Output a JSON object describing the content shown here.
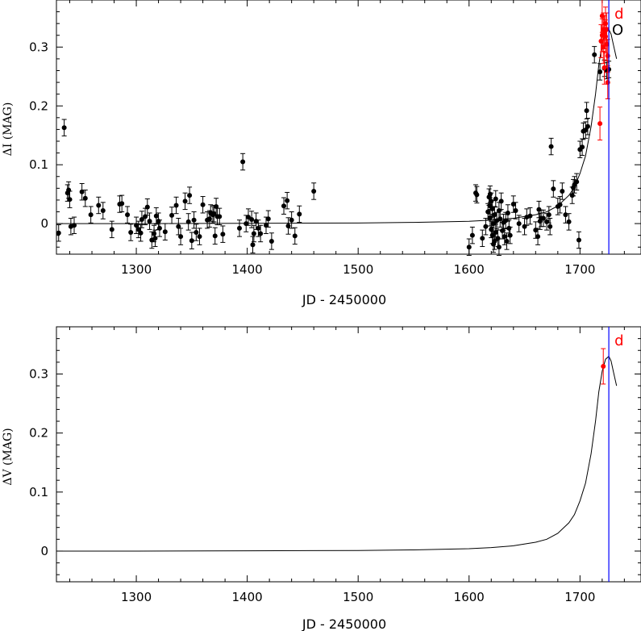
{
  "chart_data": [
    {
      "type": "scatter",
      "panel": "top",
      "xlabel": "JD - 2450000",
      "ylabel": "ΔI (MAG)",
      "xlim": [
        1228,
        1755
      ],
      "ylim": [
        -0.052,
        0.38
      ],
      "xticks": [
        "1300",
        "1400",
        "1500",
        "1600",
        "1700"
      ],
      "yticks": [
        "0",
        "0.1",
        "0.2",
        "0.3"
      ],
      "colors": {
        "black": "#000000",
        "red": "#ff0000",
        "blue": "#0000ff"
      },
      "vline": {
        "x": 1726,
        "color": "#0000ff",
        "label": "d"
      },
      "annotation": "O",
      "series": [
        {
          "color": "black",
          "points": [
            [
              1230,
              -0.016,
              0.014
            ],
            [
              1235,
              0.163,
              0.014
            ],
            [
              1238,
              0.052,
              0.014
            ],
            [
              1239,
              0.057,
              0.014
            ],
            [
              1240,
              0.041,
              0.014
            ],
            [
              1241,
              -0.005,
              0.014
            ],
            [
              1244,
              -0.003,
              0.014
            ],
            [
              1251,
              0.054,
              0.014
            ],
            [
              1254,
              0.043,
              0.014
            ],
            [
              1259,
              0.015,
              0.014
            ],
            [
              1266,
              0.031,
              0.014
            ],
            [
              1270,
              0.022,
              0.014
            ],
            [
              1278,
              -0.01,
              0.014
            ],
            [
              1285,
              0.033,
              0.014
            ],
            [
              1287,
              0.034,
              0.014
            ],
            [
              1292,
              0.015,
              0.014
            ],
            [
              1295,
              -0.015,
              0.014
            ],
            [
              1300,
              -0.003,
              0.014
            ],
            [
              1302,
              -0.01,
              0.014
            ],
            [
              1304,
              -0.016,
              0.014
            ],
            [
              1305,
              0.007,
              0.014
            ],
            [
              1308,
              0.012,
              0.014
            ],
            [
              1310,
              0.028,
              0.014
            ],
            [
              1312,
              0.004,
              0.014
            ],
            [
              1314,
              -0.028,
              0.014
            ],
            [
              1316,
              -0.017,
              0.014
            ],
            [
              1317,
              -0.025,
              0.014
            ],
            [
              1318,
              0.013,
              0.014
            ],
            [
              1320,
              0.004,
              0.014
            ],
            [
              1321,
              -0.008,
              0.014
            ],
            [
              1326,
              -0.014,
              0.014
            ],
            [
              1332,
              0.014,
              0.014
            ],
            [
              1336,
              0.031,
              0.014
            ],
            [
              1338,
              -0.005,
              0.014
            ],
            [
              1340,
              -0.022,
              0.014
            ],
            [
              1344,
              0.038,
              0.014
            ],
            [
              1347,
              0.003,
              0.014
            ],
            [
              1348,
              0.048,
              0.014
            ],
            [
              1350,
              -0.029,
              0.014
            ],
            [
              1352,
              0.006,
              0.014
            ],
            [
              1354,
              -0.015,
              0.014
            ],
            [
              1357,
              -0.022,
              0.014
            ],
            [
              1360,
              0.032,
              0.014
            ],
            [
              1364,
              0.006,
              0.014
            ],
            [
              1366,
              0.008,
              0.014
            ],
            [
              1367,
              0.018,
              0.014
            ],
            [
              1369,
              0.015,
              0.014
            ],
            [
              1370,
              0.017,
              0.014
            ],
            [
              1371,
              -0.021,
              0.014
            ],
            [
              1372,
              0.029,
              0.014
            ],
            [
              1373,
              0.012,
              0.014
            ],
            [
              1375,
              0.012,
              0.014
            ],
            [
              1378,
              -0.018,
              0.014
            ],
            [
              1393,
              -0.008,
              0.014
            ],
            [
              1396,
              0.105,
              0.014
            ],
            [
              1399,
              0.0,
              0.014
            ],
            [
              1401,
              0.011,
              0.014
            ],
            [
              1404,
              0.007,
              0.014
            ],
            [
              1405,
              -0.036,
              0.014
            ],
            [
              1406,
              -0.017,
              0.014
            ],
            [
              1408,
              0.004,
              0.014
            ],
            [
              1410,
              -0.008,
              0.014
            ],
            [
              1412,
              -0.017,
              0.014
            ],
            [
              1417,
              -0.003,
              0.014
            ],
            [
              1419,
              0.008,
              0.014
            ],
            [
              1422,
              -0.03,
              0.014
            ],
            [
              1433,
              0.03,
              0.014
            ],
            [
              1436,
              0.039,
              0.014
            ],
            [
              1437,
              -0.004,
              0.014
            ],
            [
              1440,
              0.006,
              0.014
            ],
            [
              1443,
              -0.021,
              0.014
            ],
            [
              1447,
              0.016,
              0.014
            ],
            [
              1460,
              0.055,
              0.014
            ],
            [
              1600,
              -0.04,
              0.014
            ],
            [
              1603,
              -0.02,
              0.014
            ],
            [
              1606,
              0.052,
              0.014
            ],
            [
              1607,
              0.049,
              0.014
            ],
            [
              1612,
              -0.025,
              0.014
            ],
            [
              1615,
              -0.005,
              0.014
            ],
            [
              1617,
              0.02,
              0.014
            ],
            [
              1618,
              0.045,
              0.014
            ],
            [
              1619,
              0.05,
              0.014
            ],
            [
              1619,
              0.03,
              0.014
            ],
            [
              1619,
              0.01,
              0.014
            ],
            [
              1620,
              0.038,
              0.014
            ],
            [
              1620,
              -0.01,
              0.014
            ],
            [
              1621,
              0.025,
              0.014
            ],
            [
              1621,
              -0.02,
              0.014
            ],
            [
              1622,
              0.0,
              0.014
            ],
            [
              1622,
              -0.035,
              0.014
            ],
            [
              1623,
              0.015,
              0.014
            ],
            [
              1623,
              -0.03,
              0.014
            ],
            [
              1624,
              0.042,
              0.014
            ],
            [
              1624,
              -0.015,
              0.014
            ],
            [
              1625,
              0.005,
              0.014
            ],
            [
              1626,
              -0.025,
              0.014
            ],
            [
              1627,
              0.022,
              0.014
            ],
            [
              1627,
              -0.04,
              0.014
            ],
            [
              1628,
              0.008,
              0.014
            ],
            [
              1629,
              0.038,
              0.014
            ],
            [
              1630,
              -0.012,
              0.014
            ],
            [
              1631,
              0.002,
              0.014
            ],
            [
              1632,
              -0.022,
              0.014
            ],
            [
              1633,
              0.005,
              0.014
            ],
            [
              1634,
              -0.03,
              0.014
            ],
            [
              1635,
              0.018,
              0.014
            ],
            [
              1636,
              -0.008,
              0.014
            ],
            [
              1637,
              -0.02,
              0.014
            ],
            [
              1640,
              0.033,
              0.014
            ],
            [
              1642,
              0.022,
              0.014
            ],
            [
              1645,
              0.0,
              0.014
            ],
            [
              1650,
              -0.005,
              0.014
            ],
            [
              1652,
              0.011,
              0.014
            ],
            [
              1655,
              0.013,
              0.014
            ],
            [
              1660,
              -0.011,
              0.014
            ],
            [
              1662,
              -0.022,
              0.014
            ],
            [
              1663,
              0.024,
              0.014
            ],
            [
              1664,
              0.004,
              0.014
            ],
            [
              1665,
              0.009,
              0.014
            ],
            [
              1667,
              0.009,
              0.014
            ],
            [
              1670,
              0.003,
              0.014
            ],
            [
              1672,
              0.015,
              0.014
            ],
            [
              1673,
              -0.005,
              0.014
            ],
            [
              1674,
              0.131,
              0.014
            ],
            [
              1676,
              0.059,
              0.014
            ],
            [
              1680,
              0.029,
              0.014
            ],
            [
              1682,
              0.032,
              0.014
            ],
            [
              1684,
              0.055,
              0.014
            ],
            [
              1687,
              0.015,
              0.014
            ],
            [
              1690,
              0.003,
              0.014
            ],
            [
              1693,
              0.048,
              0.014
            ],
            [
              1694,
              0.061,
              0.014
            ],
            [
              1695,
              0.066,
              0.014
            ],
            [
              1697,
              0.071,
              0.014
            ],
            [
              1699,
              -0.028,
              0.014
            ],
            [
              1700,
              0.126,
              0.014
            ],
            [
              1702,
              0.13,
              0.014
            ],
            [
              1703,
              0.157,
              0.014
            ],
            [
              1705,
              0.159,
              0.014
            ],
            [
              1706,
              0.192,
              0.014
            ],
            [
              1707,
              0.165,
              0.014
            ],
            [
              1713,
              0.287,
              0.014
            ],
            [
              1718,
              0.258,
              0.014
            ],
            [
              1722,
              0.264,
              0.014
            ],
            [
              1724,
              0.26,
              0.014
            ],
            [
              1726,
              0.262,
              0.014
            ]
          ]
        },
        {
          "color": "red",
          "points": [
            [
              1718,
              0.17,
              0.028
            ],
            [
              1719,
              0.31,
              0.028
            ],
            [
              1720,
              0.32,
              0.028
            ],
            [
              1720,
              0.353,
              0.028
            ],
            [
              1721,
              0.33,
              0.028
            ],
            [
              1721,
              0.3,
              0.028
            ],
            [
              1722,
              0.325,
              0.028
            ],
            [
              1722,
              0.265,
              0.028
            ],
            [
              1723,
              0.318,
              0.028
            ],
            [
              1723,
              0.34,
              0.028
            ],
            [
              1724,
              0.305,
              0.028
            ],
            [
              1724,
              0.33,
              0.028
            ],
            [
              1725,
              0.285,
              0.028
            ],
            [
              1725,
              0.24,
              0.028
            ]
          ]
        }
      ],
      "model": [
        [
          1228,
          0.0
        ],
        [
          1300,
          0.0
        ],
        [
          1400,
          0.0005
        ],
        [
          1500,
          0.001
        ],
        [
          1550,
          0.002
        ],
        [
          1600,
          0.004
        ],
        [
          1620,
          0.006
        ],
        [
          1640,
          0.009
        ],
        [
          1660,
          0.015
        ],
        [
          1670,
          0.02
        ],
        [
          1680,
          0.03
        ],
        [
          1690,
          0.048
        ],
        [
          1695,
          0.062
        ],
        [
          1700,
          0.085
        ],
        [
          1705,
          0.115
        ],
        [
          1710,
          0.165
        ],
        [
          1714,
          0.22
        ],
        [
          1717,
          0.27
        ],
        [
          1720,
          0.305
        ],
        [
          1723,
          0.325
        ],
        [
          1726,
          0.33
        ],
        [
          1728,
          0.322
        ],
        [
          1730,
          0.305
        ],
        [
          1733,
          0.28
        ]
      ]
    },
    {
      "type": "scatter",
      "panel": "bottom",
      "xlabel": "JD - 2450000",
      "ylabel": "ΔV (MAG)",
      "xlim": [
        1228,
        1755
      ],
      "ylim": [
        -0.052,
        0.38
      ],
      "xticks": [
        "1300",
        "1400",
        "1500",
        "1600",
        "1700"
      ],
      "yticks": [
        "0",
        "0.1",
        "0.2",
        "0.3"
      ],
      "vline": {
        "x": 1726,
        "color": "#0000ff",
        "label": "d"
      },
      "series": [
        {
          "color": "red",
          "points": [
            [
              1721,
              0.313,
              0.03
            ]
          ]
        }
      ],
      "model": [
        [
          1228,
          0.0
        ],
        [
          1300,
          0.0
        ],
        [
          1400,
          0.0005
        ],
        [
          1500,
          0.001
        ],
        [
          1550,
          0.002
        ],
        [
          1600,
          0.004
        ],
        [
          1620,
          0.006
        ],
        [
          1640,
          0.009
        ],
        [
          1660,
          0.015
        ],
        [
          1670,
          0.02
        ],
        [
          1680,
          0.03
        ],
        [
          1690,
          0.048
        ],
        [
          1695,
          0.062
        ],
        [
          1700,
          0.085
        ],
        [
          1705,
          0.115
        ],
        [
          1710,
          0.165
        ],
        [
          1714,
          0.22
        ],
        [
          1717,
          0.27
        ],
        [
          1720,
          0.305
        ],
        [
          1723,
          0.325
        ],
        [
          1726,
          0.33
        ],
        [
          1728,
          0.322
        ],
        [
          1730,
          0.305
        ],
        [
          1733,
          0.28
        ]
      ]
    }
  ]
}
